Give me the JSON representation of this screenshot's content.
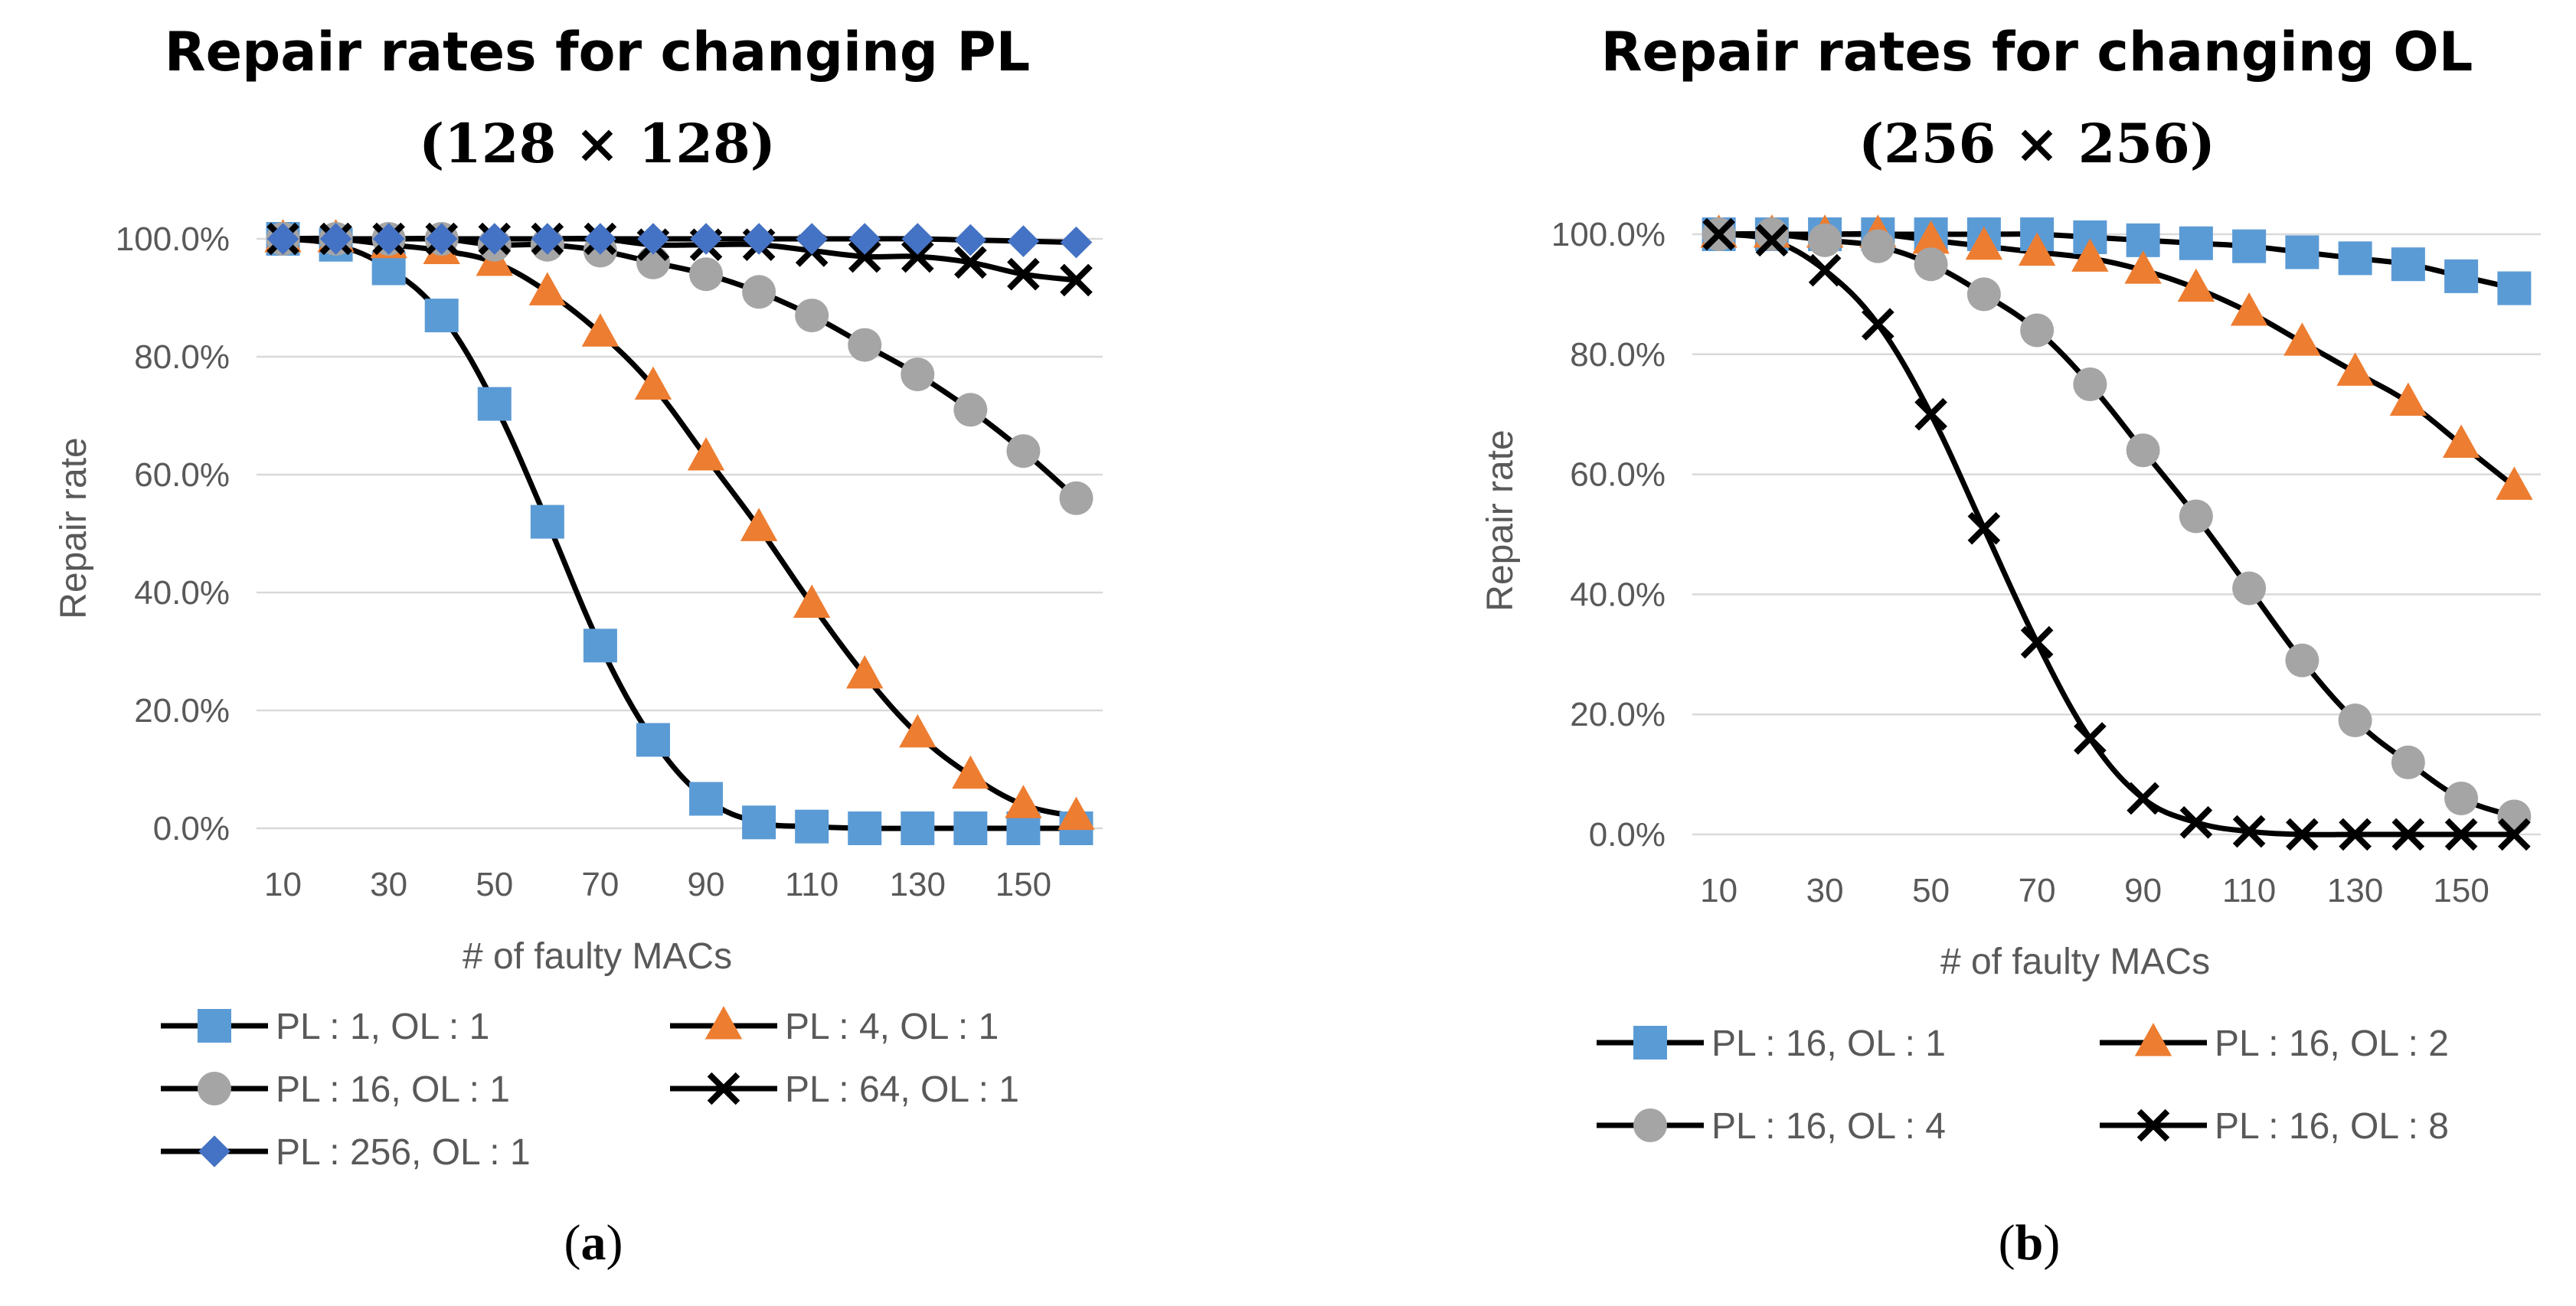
{
  "chart_data": [
    {
      "type": "line",
      "title": "Repair rates for changing PL",
      "subtitle": "(128 × 128)",
      "caption_open": "(",
      "caption_letter": "a",
      "caption_close": ")",
      "xlabel": "# of faulty MACs",
      "ylabel": "Repair rate",
      "x": [
        10,
        20,
        30,
        40,
        50,
        60,
        70,
        80,
        90,
        100,
        110,
        120,
        130,
        140,
        150,
        160
      ],
      "x_tick_labels": [
        "10",
        "30",
        "50",
        "70",
        "90",
        "110",
        "130",
        "150"
      ],
      "x_tick_values": [
        10,
        30,
        50,
        70,
        90,
        110,
        130,
        150
      ],
      "y_tick_labels": [
        "0.0%",
        "20.0%",
        "40.0%",
        "60.0%",
        "80.0%",
        "100.0%"
      ],
      "y_tick_values": [
        0,
        20,
        40,
        60,
        80,
        100
      ],
      "ylim": [
        0,
        100
      ],
      "grid": true,
      "legend_columns": 2,
      "series": [
        {
          "name": "PL : 1, OL : 1",
          "marker": "square",
          "color": "#5B9BD5",
          "values": [
            100,
            99,
            95,
            87,
            72,
            52,
            31,
            15,
            5,
            1,
            0.3,
            0,
            0,
            0,
            0,
            0
          ]
        },
        {
          "name": "PL : 4, OL : 1",
          "marker": "triangle",
          "color": "#ED7D31",
          "values": [
            100,
            100,
            99,
            98,
            96,
            91,
            84,
            75,
            63,
            51,
            38,
            26,
            16,
            9,
            4,
            2
          ]
        },
        {
          "name": "PL : 16, OL : 1",
          "marker": "circle",
          "color": "#A5A5A5",
          "values": [
            100,
            100,
            100,
            100,
            99,
            99,
            98,
            96,
            94,
            91,
            87,
            82,
            77,
            71,
            64,
            56
          ]
        },
        {
          "name": "PL : 64, OL : 1",
          "marker": "x",
          "color": "#000000",
          "values": [
            100,
            100,
            100,
            100,
            100,
            100,
            100,
            99,
            99,
            99,
            98,
            97,
            97,
            96,
            94,
            93
          ]
        },
        {
          "name": "PL : 256, OL : 1",
          "marker": "diamond",
          "color": "#4472C4",
          "values": [
            100,
            100,
            100,
            100,
            100,
            100,
            100,
            100,
            100,
            100,
            100,
            100,
            100,
            99.8,
            99.6,
            99.4
          ]
        }
      ]
    },
    {
      "type": "line",
      "title": "Repair rates for changing OL",
      "subtitle": "(256 × 256)",
      "caption_open": "(",
      "caption_letter": "b",
      "caption_close": ")",
      "xlabel": "# of faulty MACs",
      "ylabel": "Repair rate",
      "x": [
        10,
        20,
        30,
        40,
        50,
        60,
        70,
        80,
        90,
        100,
        110,
        120,
        130,
        140,
        150,
        160
      ],
      "x_tick_labels": [
        "10",
        "30",
        "50",
        "70",
        "90",
        "110",
        "130",
        "150"
      ],
      "x_tick_values": [
        10,
        30,
        50,
        70,
        90,
        110,
        130,
        150
      ],
      "y_tick_labels": [
        "0.0%",
        "20.0%",
        "40.0%",
        "60.0%",
        "80.0%",
        "100.0%"
      ],
      "y_tick_values": [
        0,
        20,
        40,
        60,
        80,
        100
      ],
      "ylim": [
        0,
        100
      ],
      "grid": true,
      "legend_columns": 2,
      "series": [
        {
          "name": "PL : 16, OL : 1",
          "marker": "square",
          "color": "#5B9BD5",
          "values": [
            100,
            100,
            100,
            100,
            100,
            100,
            100,
            99.5,
            99,
            98.5,
            98,
            97,
            96,
            95,
            93,
            91
          ]
        },
        {
          "name": "PL : 16, OL : 2",
          "marker": "triangle",
          "color": "#ED7D31",
          "values": [
            100,
            100,
            100,
            100,
            99,
            98,
            97,
            96,
            94,
            91,
            87,
            82,
            77,
            72,
            65,
            58
          ]
        },
        {
          "name": "PL : 16, OL : 4",
          "marker": "circle",
          "color": "#A5A5A5",
          "values": [
            100,
            100,
            99,
            98,
            95,
            90,
            84,
            75,
            64,
            53,
            41,
            29,
            19,
            12,
            6,
            3
          ]
        },
        {
          "name": "PL : 16, OL : 8",
          "marker": "x",
          "color": "#000000",
          "values": [
            100,
            99,
            94,
            85,
            70,
            51,
            32,
            16,
            6,
            2,
            0.5,
            0,
            0,
            0,
            0,
            0
          ]
        }
      ]
    }
  ]
}
